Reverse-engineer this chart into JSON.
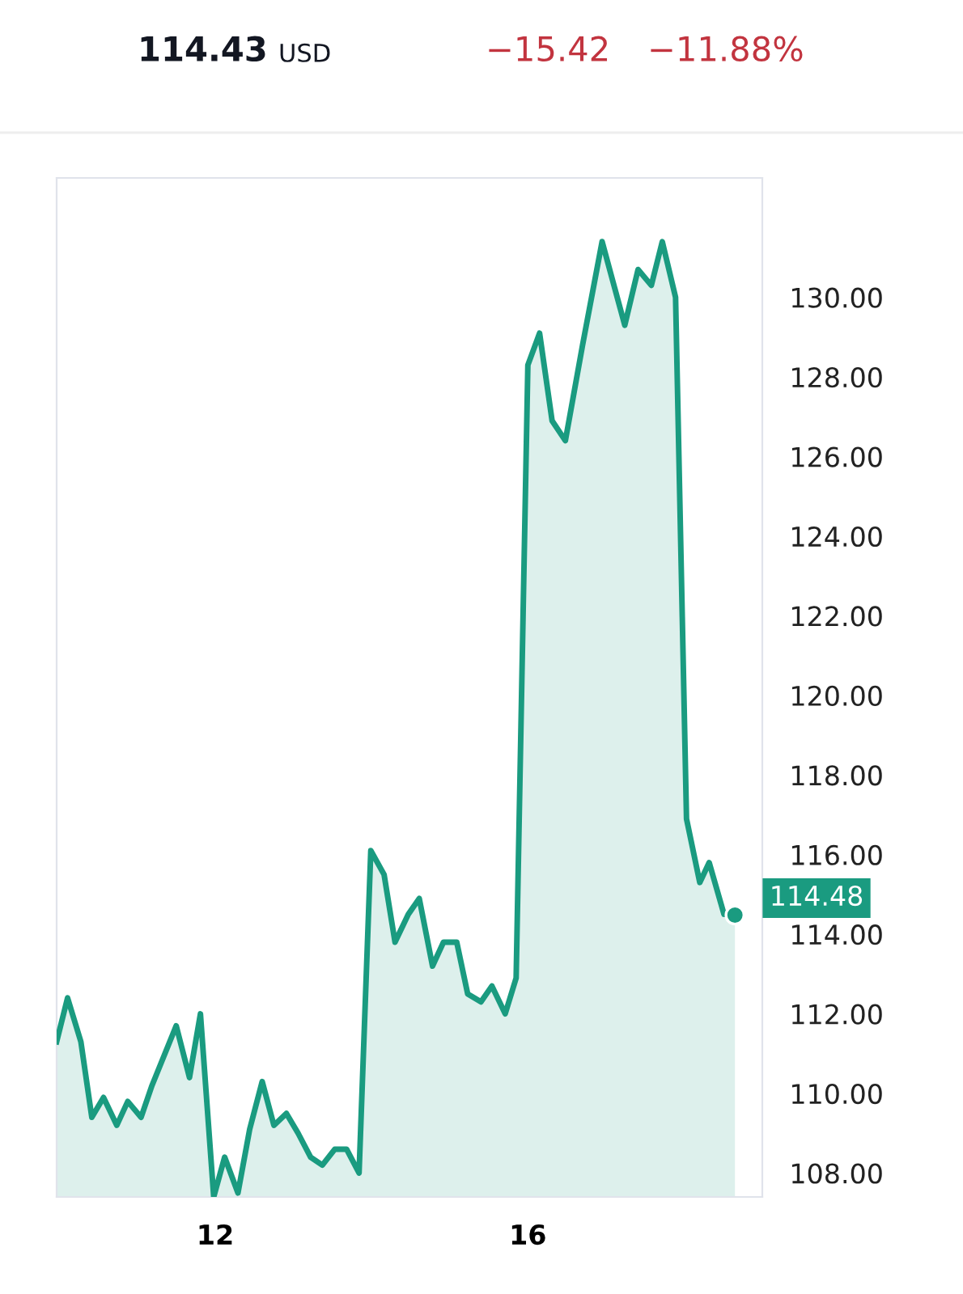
{
  "chart_data": {
    "type": "area",
    "title": "114.43",
    "annotations": [
      "USD",
      "−15.42",
      "−11.88%",
      "114.48"
    ],
    "x": [
      9.97,
      10.11,
      10.28,
      10.42,
      10.57,
      10.74,
      10.88,
      11.05,
      11.19,
      11.5,
      11.67,
      11.81,
      11.98,
      12.12,
      12.29,
      12.44,
      12.6,
      12.75,
      12.91,
      13.06,
      13.22,
      13.37,
      13.53,
      13.68,
      13.84,
      13.99,
      14.16,
      14.3,
      14.47,
      14.61,
      14.78,
      14.92,
      15.09,
      15.23,
      15.4,
      15.54,
      15.71,
      15.85,
      16.0,
      16.15,
      16.31,
      16.48,
      16.7,
      16.95,
      17.24,
      17.41,
      17.58,
      17.72,
      17.89,
      18.03,
      18.2,
      18.32,
      18.51,
      18.65
    ],
    "series": [
      {
        "color": "#1a9b80",
        "values": [
          111.3,
          112.4,
          111.3,
          109.4,
          109.9,
          109.2,
          109.8,
          109.4,
          110.2,
          111.7,
          110.4,
          112.0,
          107.4,
          108.4,
          107.5,
          109.1,
          110.3,
          109.2,
          109.5,
          109.0,
          108.4,
          108.2,
          108.6,
          108.6,
          108.0,
          116.1,
          115.5,
          113.8,
          114.5,
          114.9,
          113.2,
          113.8,
          113.8,
          112.5,
          112.3,
          112.7,
          112.0,
          112.9,
          128.3,
          129.1,
          126.9,
          126.4,
          128.8,
          131.4,
          129.3,
          130.7,
          130.3,
          131.4,
          130.0,
          116.9,
          115.3,
          115.8,
          114.5,
          114.5
        ]
      },
      {
        "type": "scatter",
        "color": "#1a9b80",
        "x": [
          18.65
        ],
        "values": [
          114.48
        ]
      }
    ],
    "xlim": [
      9.97,
      19.0
    ],
    "xticks": [
      12,
      16
    ],
    "ylim": [
      107.4,
      133.0
    ],
    "yticks": [
      {
        "value": 108,
        "label": "108.00"
      },
      {
        "value": 110,
        "label": "110.00"
      },
      {
        "value": 112,
        "label": "112.00"
      },
      {
        "value": 114,
        "label": "114.00"
      },
      {
        "value": 116,
        "label": "116.00"
      },
      {
        "value": 118,
        "label": "118.00"
      },
      {
        "value": 120,
        "label": "120.00"
      },
      {
        "value": 122,
        "label": "122.00"
      },
      {
        "value": 124,
        "label": "124.00"
      },
      {
        "value": 126,
        "label": "126.00"
      },
      {
        "value": 128,
        "label": "128.00"
      },
      {
        "value": 130,
        "label": "130.00"
      }
    ],
    "grid": false
  }
}
